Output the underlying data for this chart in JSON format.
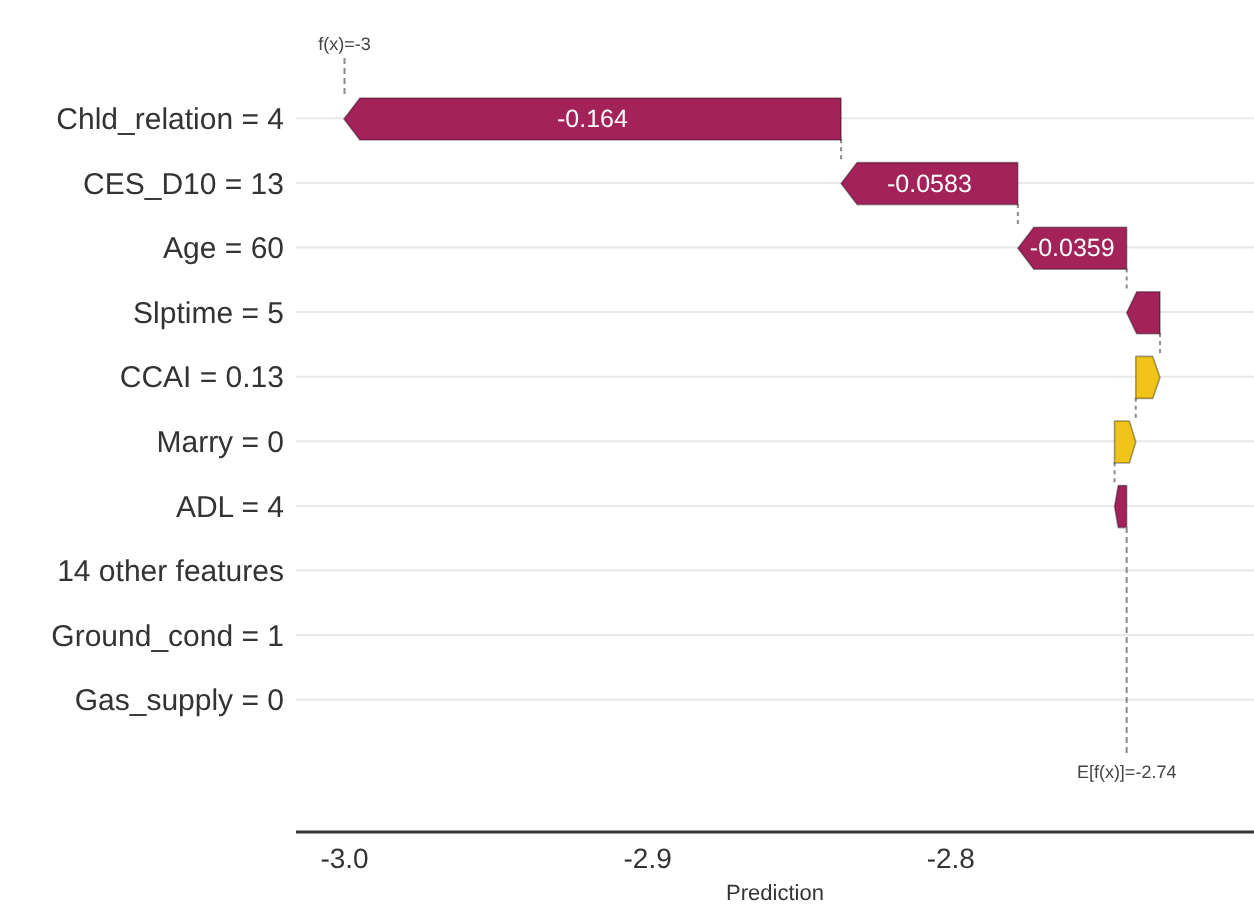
{
  "chart_data": {
    "type": "bar",
    "orientation": "horizontal",
    "xlabel": "Prediction",
    "categories": [
      "Chld_relation = 4",
      "CES_D10 = 13",
      "Age = 60",
      "Slptime = 5",
      "CCAI = 0.13",
      "Marry = 0",
      "ADL = 4",
      "14 other features",
      "Ground_cond = 1",
      "Gas_supply = 0"
    ],
    "values": [
      -0.164,
      -0.0583,
      -0.0359,
      -0.011,
      0.008,
      0.007,
      -0.004,
      null,
      null,
      null
    ],
    "base": [
      -2.8362,
      -2.7779,
      -2.742,
      -2.731,
      -2.739,
      -2.746,
      -2.742,
      null,
      null,
      null
    ],
    "colors": [
      "#a3225a",
      "#a3225a",
      "#a3225a",
      "#a3225a",
      "#f0c419",
      "#f0c419",
      "#a3225a",
      null,
      null,
      null
    ],
    "value_labels": [
      "-0.164",
      "-0.0583",
      "-0.0359",
      null,
      null,
      null,
      null,
      null,
      null,
      null
    ],
    "xlim": [
      -3.016,
      -2.7
    ],
    "xticks": [
      {
        "value": -3,
        "label": "-3.0"
      },
      -2.9,
      -2.8
    ],
    "grid": "y",
    "ref_lines": [
      {
        "axis": "x",
        "value": -3,
        "label": "f(x)=-3",
        "line_style": "dashed",
        "color": "#8a8a8a"
      },
      {
        "axis": "x",
        "value": -2.742,
        "label": "E[f(x)]=-2.74",
        "line_style": "dashed",
        "color": "#8a8a8a"
      }
    ]
  }
}
